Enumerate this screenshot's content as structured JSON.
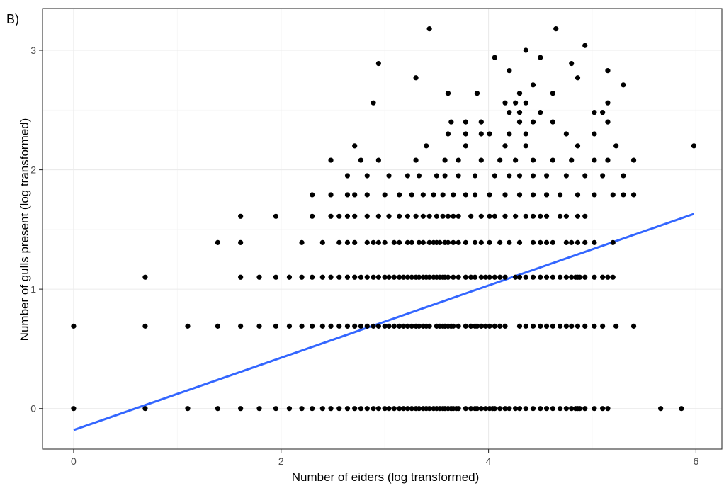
{
  "chart_data": {
    "type": "scatter",
    "panel_label": "B)",
    "xlabel": "Number of eiders (log transformed)",
    "ylabel": "Number of gulls present (log transformed)",
    "xlim": [
      -0.3,
      6.25
    ],
    "ylim": [
      -0.34,
      3.35
    ],
    "x_ticks": [
      0,
      2,
      4,
      6
    ],
    "y_ticks": [
      0,
      1,
      2,
      3
    ],
    "x_tick_labels": [
      "0",
      "2",
      "4",
      "6"
    ],
    "y_tick_labels": [
      "0",
      "1",
      "2",
      "3"
    ],
    "grid": true,
    "legend": "none",
    "point_color": "#000000",
    "line_color": "#3366FF",
    "trend_line": {
      "x": [
        0,
        5.98
      ],
      "y": [
        -0.18,
        1.63
      ]
    },
    "series": [
      {
        "rows": [
          {
            "y": 0,
            "x": [
              0,
              0.69,
              1.1,
              1.39,
              1.61,
              1.79,
              1.95,
              2.08,
              2.2,
              2.3,
              2.4,
              2.48,
              2.56,
              2.64,
              2.71,
              2.77,
              2.83,
              2.89,
              2.94,
              3.0,
              3.04,
              3.09,
              3.14,
              3.18,
              3.22,
              3.26,
              3.3,
              3.33,
              3.37,
              3.4,
              3.43,
              3.47,
              3.5,
              3.53,
              3.56,
              3.58,
              3.61,
              3.64,
              3.66,
              3.69,
              3.71,
              3.78,
              3.83,
              3.87,
              3.89,
              3.93,
              3.97,
              4.01,
              4.04,
              4.06,
              4.11,
              4.16,
              4.2,
              4.26,
              4.3,
              4.36,
              4.43,
              4.5,
              4.56,
              4.62,
              4.69,
              4.75,
              4.8,
              4.84,
              4.86,
              4.88,
              4.93,
              5.02,
              5.1,
              5.15,
              5.66,
              5.86
            ]
          },
          {
            "y": 0.69,
            "x": [
              0,
              0.69,
              1.1,
              1.39,
              1.61,
              1.79,
              1.95,
              2.08,
              2.2,
              2.3,
              2.4,
              2.48,
              2.56,
              2.64,
              2.71,
              2.77,
              2.83,
              2.89,
              2.94,
              3.0,
              3.04,
              3.09,
              3.14,
              3.18,
              3.22,
              3.26,
              3.3,
              3.33,
              3.37,
              3.4,
              3.43,
              3.5,
              3.53,
              3.56,
              3.58,
              3.61,
              3.64,
              3.66,
              3.71,
              3.78,
              3.83,
              3.87,
              3.89,
              3.93,
              3.97,
              4.01,
              4.06,
              4.11,
              4.16,
              4.3,
              4.36,
              4.43,
              4.5,
              4.56,
              4.62,
              4.69,
              4.75,
              4.8,
              4.86,
              4.93,
              5.02,
              5.1,
              5.23,
              5.4
            ]
          },
          {
            "y": 1.1,
            "x": [
              0.69,
              1.61,
              1.79,
              1.95,
              2.08,
              2.2,
              2.3,
              2.4,
              2.48,
              2.56,
              2.64,
              2.71,
              2.77,
              2.83,
              2.89,
              2.94,
              3.0,
              3.04,
              3.09,
              3.14,
              3.18,
              3.22,
              3.26,
              3.3,
              3.33,
              3.37,
              3.4,
              3.43,
              3.47,
              3.5,
              3.53,
              3.56,
              3.58,
              3.61,
              3.66,
              3.71,
              3.78,
              3.83,
              3.87,
              3.93,
              3.97,
              4.01,
              4.06,
              4.11,
              4.16,
              4.26,
              4.3,
              4.36,
              4.43,
              4.5,
              4.56,
              4.62,
              4.69,
              4.75,
              4.8,
              4.84,
              4.86,
              4.88,
              4.93,
              5.02,
              5.1,
              5.15,
              5.2
            ]
          },
          {
            "y": 1.39,
            "x": [
              1.39,
              1.61,
              2.2,
              2.4,
              2.56,
              2.64,
              2.71,
              2.83,
              2.89,
              2.94,
              3.0,
              3.09,
              3.14,
              3.22,
              3.26,
              3.33,
              3.37,
              3.43,
              3.47,
              3.5,
              3.53,
              3.58,
              3.61,
              3.66,
              3.71,
              3.78,
              3.87,
              3.93,
              4.01,
              4.11,
              4.2,
              4.3,
              4.43,
              4.5,
              4.56,
              4.62,
              4.75,
              4.8,
              4.86,
              4.93,
              5.02,
              5.2
            ]
          },
          {
            "y": 1.61,
            "x": [
              1.61,
              1.95,
              2.3,
              2.48,
              2.56,
              2.64,
              2.71,
              2.83,
              2.94,
              3.04,
              3.14,
              3.22,
              3.3,
              3.37,
              3.43,
              3.5,
              3.56,
              3.61,
              3.66,
              3.71,
              3.83,
              3.93,
              4.01,
              4.06,
              4.16,
              4.26,
              4.36,
              4.43,
              4.5,
              4.56,
              4.69,
              4.75,
              4.86,
              4.93
            ]
          },
          {
            "y": 1.79,
            "x": [
              2.3,
              2.48,
              2.64,
              2.71,
              2.83,
              3.0,
              3.14,
              3.26,
              3.37,
              3.47,
              3.56,
              3.66,
              3.78,
              3.87,
              4.01,
              4.16,
              4.3,
              4.43,
              4.56,
              4.69,
              4.86,
              5.02,
              5.2,
              5.3,
              5.4
            ]
          },
          {
            "y": 1.95,
            "x": [
              2.64,
              2.83,
              3.04,
              3.22,
              3.33,
              3.5,
              3.58,
              3.71,
              3.87,
              4.06,
              4.2,
              4.3,
              4.43,
              4.56,
              4.75,
              4.93,
              5.1,
              5.3
            ]
          },
          {
            "y": 2.08,
            "x": [
              2.48,
              2.77,
              2.94,
              3.3,
              3.58,
              3.71,
              3.93,
              4.11,
              4.26,
              4.43,
              4.62,
              4.8,
              5.02,
              5.15,
              5.4
            ]
          },
          {
            "y": 2.2,
            "x": [
              2.71,
              3.4,
              3.78,
              4.16,
              4.36,
              4.86,
              5.23,
              5.98
            ]
          },
          {
            "y": 2.3,
            "x": [
              3.61,
              3.78,
              3.93,
              4.01,
              4.2,
              4.36,
              4.75,
              5.02
            ]
          },
          {
            "y": 2.4,
            "x": [
              3.64,
              3.78,
              3.93,
              4.3,
              4.43,
              4.62,
              5.15
            ]
          },
          {
            "y": 2.48,
            "x": [
              4.2,
              4.3,
              4.5,
              5.02,
              5.1
            ]
          },
          {
            "y": 2.56,
            "x": [
              2.89,
              4.16,
              4.26,
              4.36,
              5.15
            ]
          },
          {
            "y": 2.64,
            "x": [
              3.61,
              3.89,
              4.3,
              4.62
            ]
          },
          {
            "y": 2.71,
            "x": [
              4.43,
              5.3
            ]
          },
          {
            "y": 2.77,
            "x": [
              3.3,
              4.86
            ]
          },
          {
            "y": 2.83,
            "x": [
              4.2,
              5.15
            ]
          },
          {
            "y": 2.89,
            "x": [
              2.94,
              4.8
            ]
          },
          {
            "y": 2.94,
            "x": [
              4.06,
              4.5
            ]
          },
          {
            "y": 3.0,
            "x": [
              4.36
            ]
          },
          {
            "y": 3.04,
            "x": [
              4.93
            ]
          },
          {
            "y": 3.18,
            "x": [
              3.43,
              4.65
            ]
          }
        ]
      }
    ]
  }
}
